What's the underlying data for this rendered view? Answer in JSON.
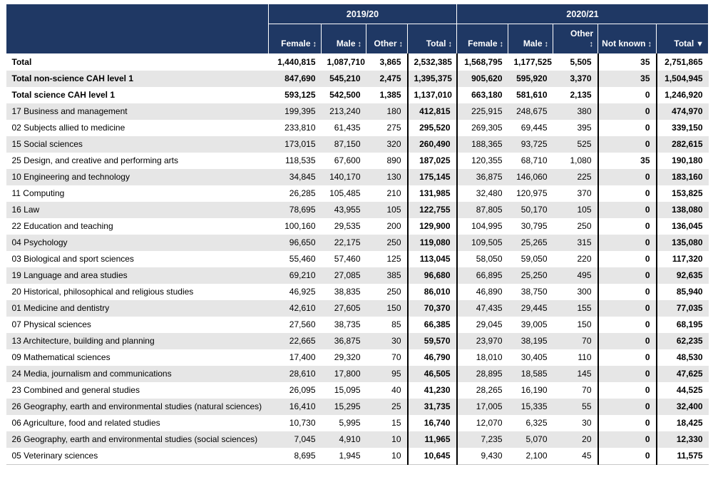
{
  "chart_data": {
    "type": "table",
    "column_groups": [
      {
        "label": "2019/20",
        "span": 4
      },
      {
        "label": "2020/21",
        "span": 5
      }
    ],
    "columns": [
      {
        "label": "Female",
        "year": "2019/20",
        "sort": "sortable"
      },
      {
        "label": "Male",
        "year": "2019/20",
        "sort": "sortable"
      },
      {
        "label": "Other",
        "year": "2019/20",
        "sort": "sortable"
      },
      {
        "label": "Total",
        "year": "2019/20",
        "sort": "sortable",
        "emph": true,
        "border_left": true,
        "border_right": true
      },
      {
        "label": "Female",
        "year": "2020/21",
        "sort": "sortable"
      },
      {
        "label": "Male",
        "year": "2020/21",
        "sort": "sortable"
      },
      {
        "label": "Other",
        "year": "2020/21",
        "sort": "sortable",
        "stack_icon": true
      },
      {
        "label": "Not known",
        "year": "2020/21",
        "sort": "sortable",
        "emph": true,
        "border_left": true
      },
      {
        "label": "Total",
        "year": "2020/21",
        "sort": "sorted_desc",
        "emph": true,
        "border_left": true
      }
    ],
    "rows": [
      {
        "label": "Total",
        "bold": true,
        "values": [
          "1,440,815",
          "1,087,710",
          "3,865",
          "2,532,385",
          "1,568,795",
          "1,177,525",
          "5,505",
          "35",
          "2,751,865"
        ]
      },
      {
        "label": "Total non-science CAH level 1",
        "bold": true,
        "values": [
          "847,690",
          "545,210",
          "2,475",
          "1,395,375",
          "905,620",
          "595,920",
          "3,370",
          "35",
          "1,504,945"
        ]
      },
      {
        "label": "Total science CAH level 1",
        "bold": true,
        "values": [
          "593,125",
          "542,500",
          "1,385",
          "1,137,010",
          "663,180",
          "581,610",
          "2,135",
          "0",
          "1,246,920"
        ]
      },
      {
        "label": "17 Business and management",
        "bold": false,
        "values": [
          "199,395",
          "213,240",
          "180",
          "412,815",
          "225,915",
          "248,675",
          "380",
          "0",
          "474,970"
        ]
      },
      {
        "label": "02 Subjects allied to medicine",
        "bold": false,
        "values": [
          "233,810",
          "61,435",
          "275",
          "295,520",
          "269,305",
          "69,445",
          "395",
          "0",
          "339,150"
        ]
      },
      {
        "label": "15 Social sciences",
        "bold": false,
        "values": [
          "173,015",
          "87,150",
          "320",
          "260,490",
          "188,365",
          "93,725",
          "525",
          "0",
          "282,615"
        ]
      },
      {
        "label": "25 Design, and creative and performing arts",
        "bold": false,
        "values": [
          "118,535",
          "67,600",
          "890",
          "187,025",
          "120,355",
          "68,710",
          "1,080",
          "35",
          "190,180"
        ]
      },
      {
        "label": "10 Engineering and technology",
        "bold": false,
        "values": [
          "34,845",
          "140,170",
          "130",
          "175,145",
          "36,875",
          "146,060",
          "225",
          "0",
          "183,160"
        ]
      },
      {
        "label": "11 Computing",
        "bold": false,
        "values": [
          "26,285",
          "105,485",
          "210",
          "131,985",
          "32,480",
          "120,975",
          "370",
          "0",
          "153,825"
        ]
      },
      {
        "label": "16 Law",
        "bold": false,
        "values": [
          "78,695",
          "43,955",
          "105",
          "122,755",
          "87,805",
          "50,170",
          "105",
          "0",
          "138,080"
        ]
      },
      {
        "label": "22 Education and teaching",
        "bold": false,
        "values": [
          "100,160",
          "29,535",
          "200",
          "129,900",
          "104,995",
          "30,795",
          "250",
          "0",
          "136,045"
        ]
      },
      {
        "label": "04 Psychology",
        "bold": false,
        "values": [
          "96,650",
          "22,175",
          "250",
          "119,080",
          "109,505",
          "25,265",
          "315",
          "0",
          "135,080"
        ]
      },
      {
        "label": "03 Biological and sport sciences",
        "bold": false,
        "values": [
          "55,460",
          "57,460",
          "125",
          "113,045",
          "58,050",
          "59,050",
          "220",
          "0",
          "117,320"
        ]
      },
      {
        "label": "19 Language and area studies",
        "bold": false,
        "values": [
          "69,210",
          "27,085",
          "385",
          "96,680",
          "66,895",
          "25,250",
          "495",
          "0",
          "92,635"
        ]
      },
      {
        "label": "20 Historical, philosophical and religious studies",
        "bold": false,
        "values": [
          "46,925",
          "38,835",
          "250",
          "86,010",
          "46,890",
          "38,750",
          "300",
          "0",
          "85,940"
        ]
      },
      {
        "label": "01 Medicine and dentistry",
        "bold": false,
        "values": [
          "42,610",
          "27,605",
          "150",
          "70,370",
          "47,435",
          "29,445",
          "155",
          "0",
          "77,035"
        ]
      },
      {
        "label": "07 Physical sciences",
        "bold": false,
        "values": [
          "27,560",
          "38,735",
          "85",
          "66,385",
          "29,045",
          "39,005",
          "150",
          "0",
          "68,195"
        ]
      },
      {
        "label": "13 Architecture, building and planning",
        "bold": false,
        "values": [
          "22,665",
          "36,875",
          "30",
          "59,570",
          "23,970",
          "38,195",
          "70",
          "0",
          "62,235"
        ]
      },
      {
        "label": "09 Mathematical sciences",
        "bold": false,
        "values": [
          "17,400",
          "29,320",
          "70",
          "46,790",
          "18,010",
          "30,405",
          "110",
          "0",
          "48,530"
        ]
      },
      {
        "label": "24 Media, journalism and communications",
        "bold": false,
        "values": [
          "28,610",
          "17,800",
          "95",
          "46,505",
          "28,895",
          "18,585",
          "145",
          "0",
          "47,625"
        ]
      },
      {
        "label": "23 Combined and general studies",
        "bold": false,
        "values": [
          "26,095",
          "15,095",
          "40",
          "41,230",
          "28,265",
          "16,190",
          "70",
          "0",
          "44,525"
        ]
      },
      {
        "label": "26 Geography, earth and environmental studies (natural sciences)",
        "bold": false,
        "values": [
          "16,410",
          "15,295",
          "25",
          "31,735",
          "17,005",
          "15,335",
          "55",
          "0",
          "32,400"
        ]
      },
      {
        "label": "06 Agriculture, food and related studies",
        "bold": false,
        "values": [
          "10,730",
          "5,995",
          "15",
          "16,740",
          "12,070",
          "6,325",
          "30",
          "0",
          "18,425"
        ]
      },
      {
        "label": "26 Geography, earth and environmental studies (social sciences)",
        "bold": false,
        "values": [
          "7,045",
          "4,910",
          "10",
          "11,965",
          "7,235",
          "5,070",
          "20",
          "0",
          "12,330"
        ]
      },
      {
        "label": "05 Veterinary sciences",
        "bold": false,
        "values": [
          "8,695",
          "1,945",
          "10",
          "10,645",
          "9,430",
          "2,100",
          "45",
          "0",
          "11,575"
        ]
      }
    ]
  },
  "icons": {
    "sortable": "↕",
    "sorted_desc": "▼"
  },
  "colors": {
    "header_bg": "#1f3864",
    "header_text": "#ffffff",
    "row_bg": "#ffffff",
    "row_alt_bg": "#e6e6e6",
    "text": "#000000",
    "divider": "#000000",
    "table_bottom_border": "#c8c8c8"
  }
}
